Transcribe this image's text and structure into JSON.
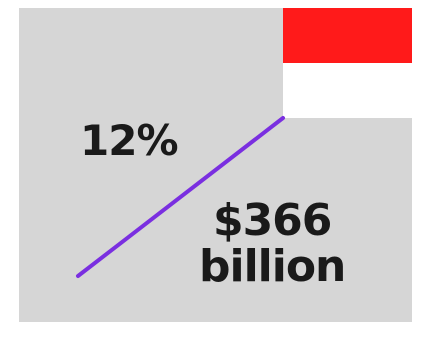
{
  "flag": {
    "top_color": "#ff1a1a",
    "bottom_color": "#ffffff"
  },
  "colors": {
    "panel_background": "#d6d6d6",
    "trend_line": "#7a2fe0",
    "text": "#1a1a1a"
  },
  "stats": {
    "growth_percent": "12%",
    "amount_line1": "$366",
    "amount_line2": "billion"
  }
}
